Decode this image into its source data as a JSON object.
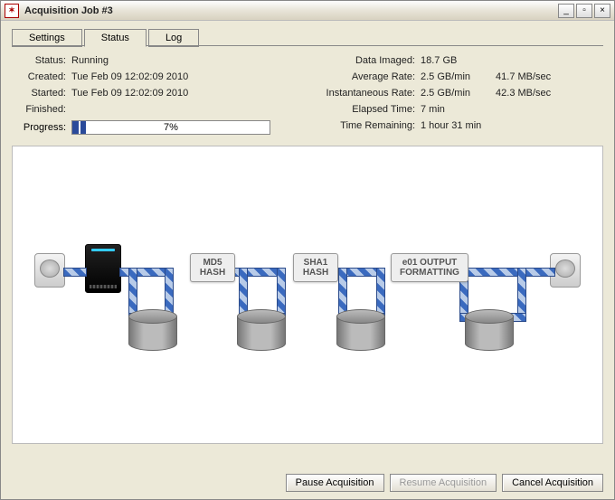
{
  "window": {
    "title": "Acquisition Job #3"
  },
  "tabs": {
    "settings": "Settings",
    "status": "Status",
    "log": "Log",
    "active": "status"
  },
  "left_stats": {
    "status_label": "Status:",
    "status_value": "Running",
    "created_label": "Created:",
    "created_value": "Tue Feb 09 12:02:09 2010",
    "started_label": "Started:",
    "started_value": "Tue Feb 09 12:02:09 2010",
    "finished_label": "Finished:",
    "finished_value": "",
    "progress_label": "Progress:",
    "progress_pct": 7,
    "progress_text": "7%"
  },
  "right_stats": {
    "data_imaged_label": "Data Imaged:",
    "data_imaged_value": "18.7 GB",
    "avg_rate_label": "Average Rate:",
    "avg_rate_value": "2.5 GB/min",
    "avg_rate_extra": "41.7 MB/sec",
    "inst_rate_label": "Instantaneous Rate:",
    "inst_rate_value": "2.5 GB/min",
    "inst_rate_extra": "42.3 MB/sec",
    "elapsed_label": "Elapsed Time:",
    "elapsed_value": "7 min",
    "remaining_label": "Time Remaining:",
    "remaining_value": "1 hour 31 min"
  },
  "diagram": {
    "stage1_line1": "MD5",
    "stage1_line2": "HASH",
    "stage2_line1": "SHA1",
    "stage2_line2": "HASH",
    "stage3_line1": "e01 OUTPUT",
    "stage3_line2": "FORMATTING"
  },
  "buttons": {
    "pause": "Pause Acquisition",
    "resume": "Resume Acquisition",
    "cancel": "Cancel Acquisition"
  },
  "colors": {
    "window_bg": "#ece9d8",
    "panel_bg": "#ffffff",
    "pipe_a": "#3a6abf",
    "pipe_b": "#b8cbe8"
  }
}
